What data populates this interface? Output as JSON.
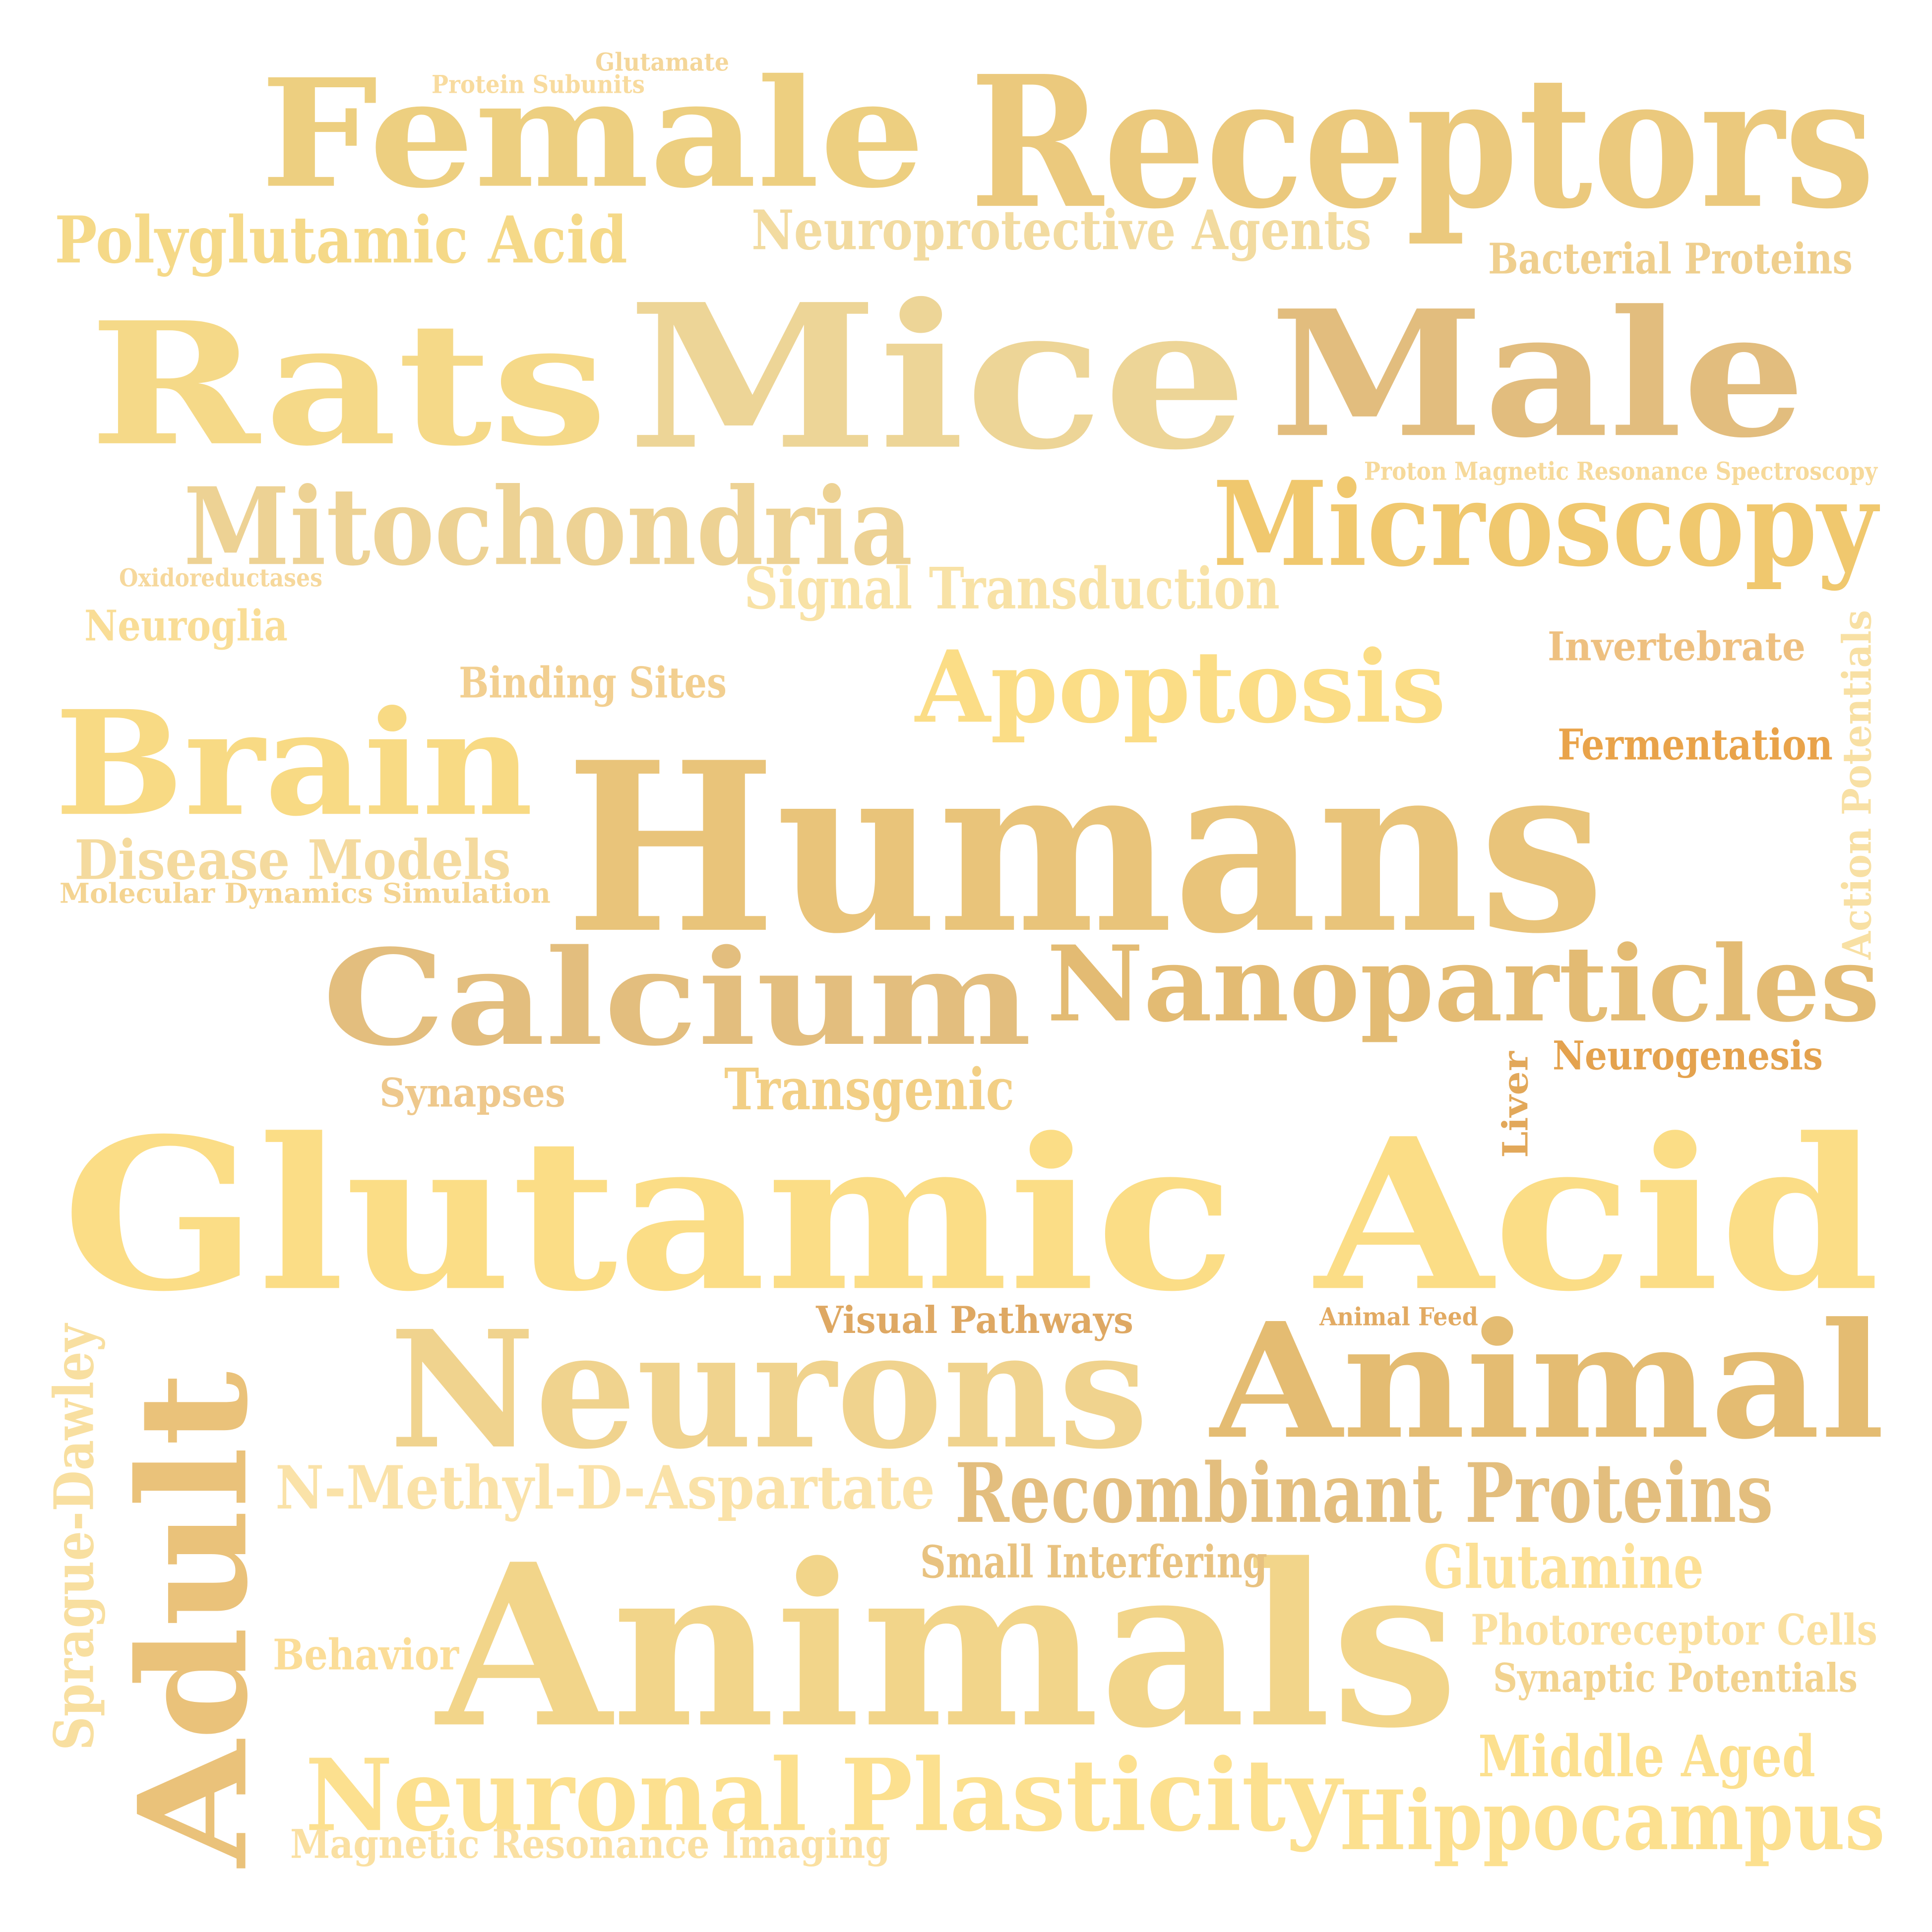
{
  "words": [
    {
      "text": "Glutamic Acid",
      "color": "#FBDD86"
    },
    {
      "text": "Animals",
      "color": "#F2D58A"
    },
    {
      "text": "Humans",
      "color": "#E9C47A"
    },
    {
      "text": "Mice",
      "color": "#EDD597"
    },
    {
      "text": "Rats",
      "color": "#F5D988"
    },
    {
      "text": "Male",
      "color": "#E2BD7E"
    },
    {
      "text": "Receptors",
      "color": "#EBC97D"
    },
    {
      "text": "Female",
      "color": "#EDCF80"
    },
    {
      "text": "Neurons",
      "color": "#F0D38E"
    },
    {
      "text": "Animal",
      "color": "#E4BC72"
    },
    {
      "text": "Adult",
      "color": "#EAC27A"
    },
    {
      "text": "Calcium",
      "color": "#E3BE7E"
    },
    {
      "text": "Nanoparticles",
      "color": "#E3BB73"
    },
    {
      "text": "Brain",
      "color": "#F8DA84"
    },
    {
      "text": "Neuronal Plasticity",
      "color": "#FCE08F"
    },
    {
      "text": "Hippocampus",
      "color": "#FCE08F"
    },
    {
      "text": "Mitochondria",
      "color": "#EDD294"
    },
    {
      "text": "Microscopy",
      "color": "#F0C86E"
    },
    {
      "text": "Apoptosis",
      "color": "#FBDD86"
    },
    {
      "text": "Recombinant Proteins",
      "color": "#E3BE7E"
    },
    {
      "text": "Polyglutamic Acid",
      "color": "#F5D988"
    },
    {
      "text": "Neuroprotective Agents",
      "color": "#F2DBA0"
    },
    {
      "text": "Signal Transduction",
      "color": "#F8E2A6"
    },
    {
      "text": "N-Methyl-D-Aspartate",
      "color": "#FAE2A8"
    },
    {
      "text": "Disease Models",
      "color": "#F4DA9E"
    },
    {
      "text": "Transgenic",
      "color": "#F2CF85"
    },
    {
      "text": "Glutamine",
      "color": "#FCE096"
    },
    {
      "text": "Middle Aged",
      "color": "#FCE08F"
    },
    {
      "text": "Sprague-Dawley",
      "color": "#F8DFA0"
    },
    {
      "text": "Bacterial Proteins",
      "color": "#EFCF8E"
    },
    {
      "text": "Photoreceptor Cells",
      "color": "#FAE0A0"
    },
    {
      "text": "Synaptic Potentials",
      "color": "#F2D38F"
    },
    {
      "text": "Binding Sites",
      "color": "#F2CF90"
    },
    {
      "text": "Invertebrate",
      "color": "#EEC080"
    },
    {
      "text": "Fermentation",
      "color": "#E9A34A"
    },
    {
      "text": "Neurogenesis",
      "color": "#E4A24E"
    },
    {
      "text": "Action Potentials",
      "color": "#F8E0A4"
    },
    {
      "text": "Small Interfering",
      "color": "#E8C280"
    },
    {
      "text": "Neuroglia",
      "color": "#F9DD96"
    },
    {
      "text": "Synapses",
      "color": "#EEC88C"
    },
    {
      "text": "Behavior",
      "color": "#FBDD98"
    },
    {
      "text": "Magnetic Resonance Imaging",
      "color": "#FAE0A2"
    },
    {
      "text": "Molecular Dynamics Simulation",
      "color": "#F4D492"
    },
    {
      "text": "Visual Pathways",
      "color": "#DEA863"
    },
    {
      "text": "Liver",
      "color": "#E2A85A"
    },
    {
      "text": "Animal Feed",
      "color": "#E2AA62"
    },
    {
      "text": "Proton Magnetic Resonance Spectroscopy",
      "color": "#F6D99A"
    },
    {
      "text": "Oxidoreductases",
      "color": "#F6D89C"
    },
    {
      "text": "Protein Subunits",
      "color": "#F8DB9E"
    },
    {
      "text": "Glutamate",
      "color": "#F4D699"
    }
  ]
}
